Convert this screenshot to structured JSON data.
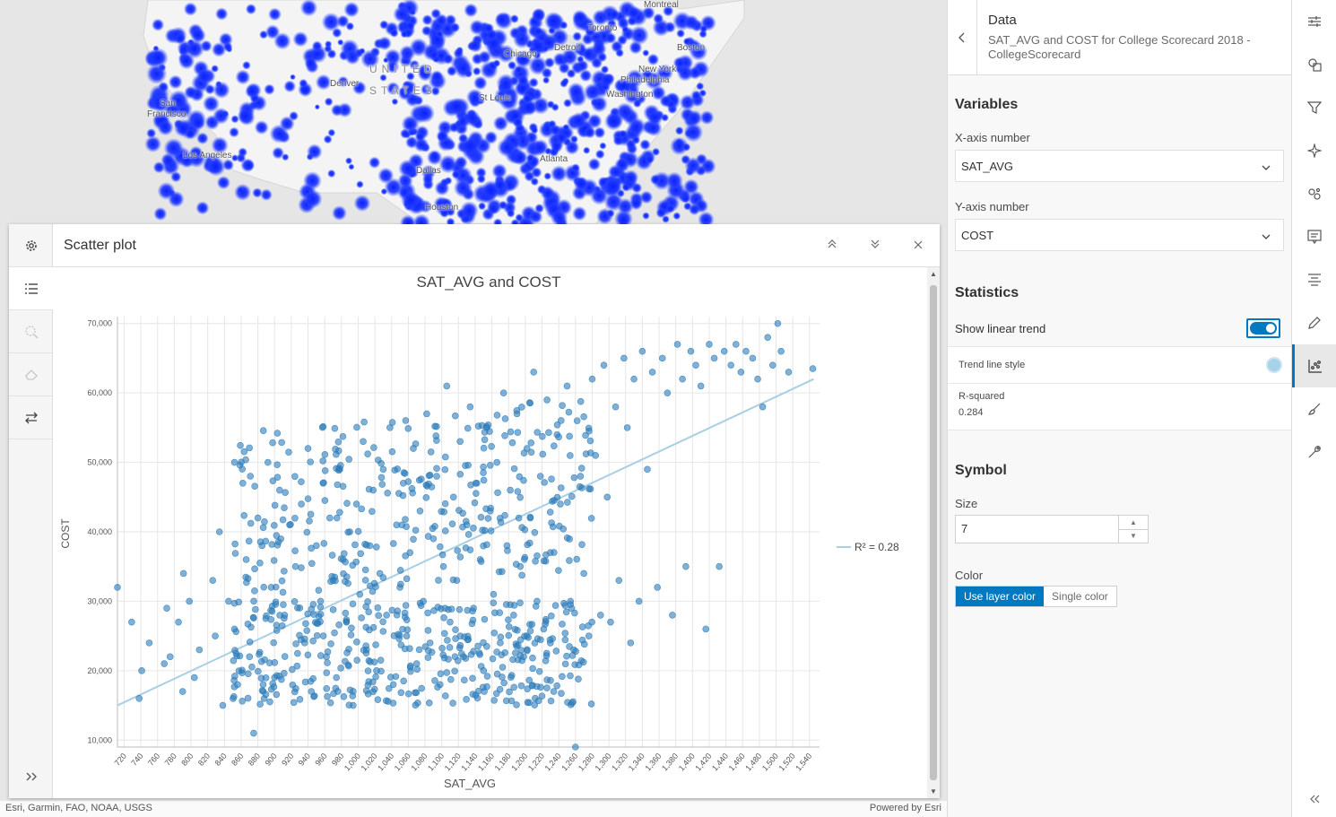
{
  "map": {
    "labels": {
      "montreal": "Montreal",
      "toronto": "Toronto",
      "detroit": "Detroit",
      "boston": "Boston",
      "chicago": "Chicago",
      "new_york": "New York",
      "philadelphia": "Philadelphia",
      "washington": "Washington",
      "united": "UNITED",
      "states": "STATES",
      "denver": "Denver",
      "st_louis": "St Louis",
      "san_francisco_1": "San",
      "san_francisco_2": "Francisco",
      "los_angeles": "Los Angeles",
      "atlanta": "Atlanta",
      "dallas": "Dallas",
      "houston": "Houston"
    },
    "attribution": "Esri, Garmin, FAO, NOAA, USGS",
    "powered_by": "Powered by Esri",
    "point_color": "#1430ff"
  },
  "widget": {
    "title": "Scatter plot",
    "icons": {
      "settings": "gear-icon",
      "list": "list-icon",
      "zoom": "zoom-selection-icon",
      "eraser": "clear-selection-icon",
      "swap": "swap-axes-icon",
      "expand": "expand-icon",
      "maximize": "chevrons-up-icon",
      "minimize": "chevrons-down-icon",
      "close": "close-icon"
    }
  },
  "chart_data": {
    "type": "scatter",
    "title": "SAT_AVG and COST",
    "xlabel": "SAT_AVG",
    "ylabel": "COST",
    "xlim": [
      712,
      1552
    ],
    "ylim": [
      9000,
      71000
    ],
    "x_ticks": [
      "720",
      "740",
      "760",
      "780",
      "800",
      "820",
      "840",
      "860",
      "880",
      "900",
      "920",
      "940",
      "960",
      "980",
      "1,000",
      "1,020",
      "1,040",
      "1,060",
      "1,080",
      "1,100",
      "1,120",
      "1,140",
      "1,160",
      "1,180",
      "1,200",
      "1,220",
      "1,240",
      "1,260",
      "1,280",
      "1,300",
      "1,320",
      "1,340",
      "1,360",
      "1,380",
      "1,400",
      "1,420",
      "1,440",
      "1,460",
      "1,480",
      "1,500",
      "1,520",
      "1,540"
    ],
    "y_ticks": [
      "10,000",
      "20,000",
      "30,000",
      "40,000",
      "50,000",
      "60,000",
      "70,000"
    ],
    "y_tick_values": [
      10000,
      20000,
      30000,
      40000,
      50000,
      60000,
      70000
    ],
    "trend": {
      "x": [
        712,
        1545
      ],
      "y": [
        15000,
        62000
      ],
      "label": "R² = 0.28"
    },
    "point_color": "#2b7bb9",
    "trend_color": "#a8cfe4",
    "grid": true,
    "legend": "right",
    "points": [
      [
        712,
        32000
      ],
      [
        729,
        27000
      ],
      [
        738,
        16000
      ],
      [
        741,
        20000
      ],
      [
        750,
        24000
      ],
      [
        768,
        21000
      ],
      [
        771,
        29000
      ],
      [
        775,
        22000
      ],
      [
        785,
        27000
      ],
      [
        790,
        17000
      ],
      [
        791,
        34000
      ],
      [
        798,
        30000
      ],
      [
        804,
        19000
      ],
      [
        810,
        23000
      ],
      [
        826,
        33000
      ],
      [
        829,
        25000
      ],
      [
        834,
        40000
      ],
      [
        838,
        15000
      ],
      [
        845,
        30000
      ],
      [
        852,
        26000
      ],
      [
        862,
        47000
      ],
      [
        866,
        36000
      ],
      [
        870,
        22000
      ],
      [
        875,
        11000
      ],
      [
        880,
        42000
      ],
      [
        885,
        38000
      ],
      [
        892,
        50000
      ],
      [
        896,
        32000
      ],
      [
        900,
        19000
      ],
      [
        906,
        46000
      ],
      [
        912,
        28000
      ],
      [
        918,
        41000
      ],
      [
        925,
        35000
      ],
      [
        932,
        44000
      ],
      [
        936,
        24000
      ],
      [
        940,
        52000
      ],
      [
        944,
        17000
      ],
      [
        950,
        38000
      ],
      [
        955,
        30000
      ],
      [
        958,
        47000
      ],
      [
        962,
        22000
      ],
      [
        966,
        42000
      ],
      [
        970,
        33000
      ],
      [
        974,
        19000
      ],
      [
        978,
        49000
      ],
      [
        982,
        36000
      ],
      [
        986,
        27000
      ],
      [
        990,
        40000
      ],
      [
        994,
        15000
      ],
      [
        998,
        44000
      ],
      [
        1002,
        31000
      ],
      [
        1006,
        53000
      ],
      [
        1010,
        23000
      ],
      [
        1014,
        38000
      ],
      [
        1018,
        46000
      ],
      [
        1022,
        20000
      ],
      [
        1026,
        34000
      ],
      [
        1030,
        49000
      ],
      [
        1034,
        28000
      ],
      [
        1038,
        55000
      ],
      [
        1042,
        18000
      ],
      [
        1046,
        41000
      ],
      [
        1050,
        32000
      ],
      [
        1054,
        47000
      ],
      [
        1058,
        25000
      ],
      [
        1062,
        37000
      ],
      [
        1066,
        52000
      ],
      [
        1070,
        21000
      ],
      [
        1074,
        43000
      ],
      [
        1078,
        30000
      ],
      [
        1082,
        57000
      ],
      [
        1086,
        24000
      ],
      [
        1090,
        39000
      ],
      [
        1094,
        48000
      ],
      [
        1098,
        18000
      ],
      [
        1102,
        35000
      ],
      [
        1106,
        61000
      ],
      [
        1110,
        27000
      ],
      [
        1114,
        45000
      ],
      [
        1118,
        33000
      ],
      [
        1122,
        53000
      ],
      [
        1126,
        22000
      ],
      [
        1130,
        41000
      ],
      [
        1134,
        58000
      ],
      [
        1138,
        29000
      ],
      [
        1142,
        47000
      ],
      [
        1146,
        36000
      ],
      [
        1150,
        20000
      ],
      [
        1154,
        55000
      ],
      [
        1158,
        43000
      ],
      [
        1162,
        31000
      ],
      [
        1166,
        50000
      ],
      [
        1170,
        24000
      ],
      [
        1174,
        60000
      ],
      [
        1178,
        38000
      ],
      [
        1182,
        46000
      ],
      [
        1186,
        28000
      ],
      [
        1190,
        57000
      ],
      [
        1194,
        35000
      ],
      [
        1198,
        22000
      ],
      [
        1202,
        52000
      ],
      [
        1206,
        42000
      ],
      [
        1210,
        63000
      ],
      [
        1214,
        30000
      ],
      [
        1218,
        48000
      ],
      [
        1222,
        26000
      ],
      [
        1226,
        59000
      ],
      [
        1230,
        37000
      ],
      [
        1234,
        17000
      ],
      [
        1238,
        54000
      ],
      [
        1242,
        44000
      ],
      [
        1250,
        61000
      ],
      [
        1254,
        30000
      ],
      [
        1258,
        23000
      ],
      [
        1262,
        56000
      ],
      [
        1266,
        48000
      ],
      [
        1270,
        34000
      ],
      [
        1276,
        25000
      ],
      [
        1280,
        62000
      ],
      [
        1284,
        51000
      ],
      [
        1290,
        28000
      ],
      [
        1294,
        64000
      ],
      [
        1298,
        45000
      ],
      [
        1302,
        27000
      ],
      [
        1308,
        58000
      ],
      [
        1312,
        33000
      ],
      [
        1318,
        65000
      ],
      [
        1322,
        55000
      ],
      [
        1326,
        24000
      ],
      [
        1330,
        62000
      ],
      [
        1336,
        30000
      ],
      [
        1340,
        66000
      ],
      [
        1346,
        49000
      ],
      [
        1352,
        63000
      ],
      [
        1358,
        32000
      ],
      [
        1364,
        65000
      ],
      [
        1370,
        60000
      ],
      [
        1376,
        28000
      ],
      [
        1382,
        67000
      ],
      [
        1388,
        62000
      ],
      [
        1392,
        35000
      ],
      [
        1398,
        66000
      ],
      [
        1404,
        64000
      ],
      [
        1410,
        61000
      ],
      [
        1416,
        26000
      ],
      [
        1420,
        67000
      ],
      [
        1426,
        65000
      ],
      [
        1432,
        35000
      ],
      [
        1438,
        66000
      ],
      [
        1446,
        64000
      ],
      [
        1452,
        67000
      ],
      [
        1458,
        63000
      ],
      [
        1464,
        66000
      ],
      [
        1472,
        65000
      ],
      [
        1478,
        62000
      ],
      [
        1484,
        58000
      ],
      [
        1490,
        68000
      ],
      [
        1496,
        64000
      ],
      [
        1502,
        70000
      ],
      [
        1506,
        66000
      ],
      [
        1515,
        63000
      ],
      [
        1544,
        63500
      ],
      [
        852,
        50000
      ],
      [
        1260,
        9000
      ]
    ]
  },
  "panel": {
    "header_title": "Data",
    "header_subtitle": "SAT_AVG and COST for College Scorecard 2018 - CollegeScorecard",
    "variables_title": "Variables",
    "x_label": "X-axis number",
    "x_value": "SAT_AVG",
    "y_label": "Y-axis number",
    "y_value": "COST",
    "statistics_title": "Statistics",
    "show_trend_label": "Show linear trend",
    "trend_style_label": "Trend line style",
    "r_squared_label": "R-squared",
    "r_squared_value": "0.284",
    "symbol_title": "Symbol",
    "size_label": "Size",
    "size_value": "7",
    "color_label": "Color",
    "color_option_layer": "Use layer color",
    "color_option_single": "Single color",
    "accent_color": "#0079c1"
  },
  "toolbar": {
    "icons": [
      "sliders-icon",
      "shapes-icon",
      "filter-icon",
      "sparkle-icon",
      "clustering-icon",
      "popup-icon",
      "labels-icon",
      "pen-icon",
      "scatter-chart-icon",
      "brush-icon",
      "wrench-icon"
    ],
    "active": "scatter-chart-icon",
    "collapse_icon": "chevrons-left-icon"
  }
}
